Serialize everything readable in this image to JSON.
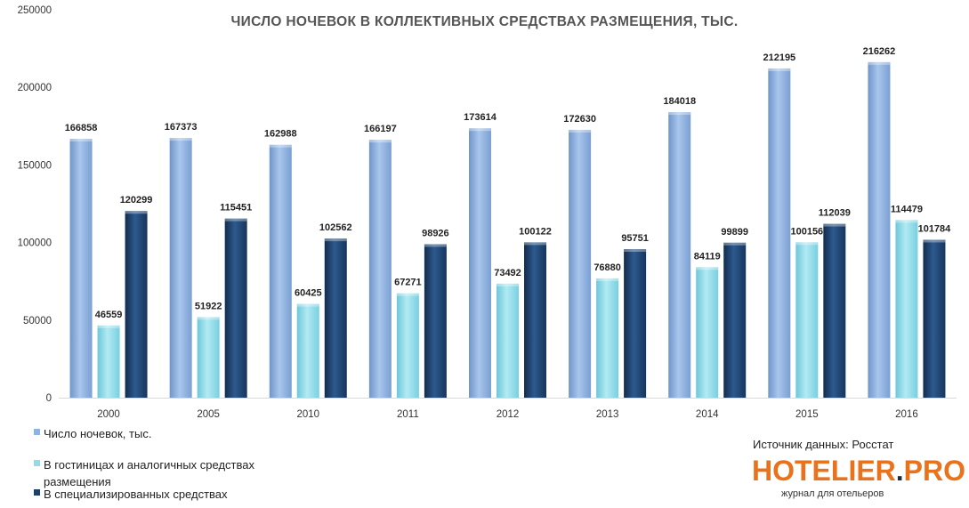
{
  "chart_data": {
    "type": "bar",
    "title": "ЧИСЛО НОЧЕВОК  В КОЛЛЕКТИВНЫХ  СРЕДСТВАХ РАЗМЕЩЕНИЯ,  ТЫС.",
    "categories": [
      "2000",
      "2005",
      "2010",
      "2011",
      "2012",
      "2013",
      "2014",
      "2015",
      "2016"
    ],
    "ylim": [
      0,
      250000
    ],
    "yticks": [
      0,
      50000,
      100000,
      150000,
      200000,
      250000
    ],
    "grid": false,
    "legend_position": "bottom-left",
    "series": [
      {
        "name": "Число ночевок, тыс.",
        "color": "#8fb3e0",
        "values": [
          166858,
          167373,
          162988,
          166197,
          173614,
          172630,
          184018,
          212195,
          216262
        ]
      },
      {
        "name": "В  гостиницах и аналогичных средствах размещения",
        "color": "#93dbe8",
        "values": [
          46559,
          51922,
          60425,
          67271,
          73492,
          76880,
          84119,
          100156,
          114479
        ]
      },
      {
        "name": "В специализированных  средствах",
        "color": "#1d3f68",
        "values": [
          120299,
          115451,
          102562,
          98926,
          100122,
          95751,
          99899,
          112039,
          101784
        ]
      }
    ]
  },
  "legend": {
    "items": [
      {
        "label": "Число ночевок, тыс.",
        "color": "#8fb3e0"
      },
      {
        "label_line1": "В  гостиницах и аналогичных средствах",
        "label_line2": "размещения",
        "color": "#93dbe8"
      },
      {
        "label": "В специализированных  средствах",
        "color": "#1d3f68"
      }
    ]
  },
  "source_text": "Источник данных: Росстат",
  "logo": {
    "main": "HOTELIER",
    "dot": ".",
    "suffix": "PRO",
    "tagline": "журнал для отельеров"
  }
}
